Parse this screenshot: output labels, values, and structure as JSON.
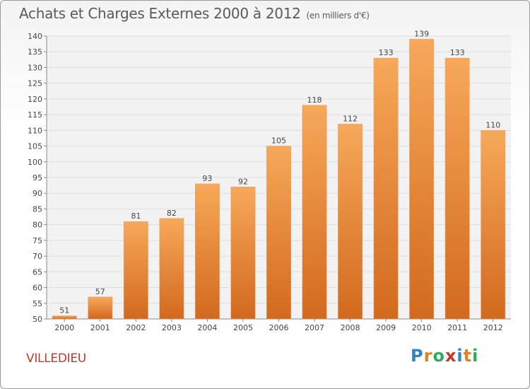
{
  "title": "Achats et Charges Externes 2000 à 2012",
  "subtitle": "(en milliers d'€)",
  "commune": "VILLEDIEU",
  "logo": {
    "letters": [
      {
        "ch": "P",
        "color": "#2e86c1"
      },
      {
        "ch": "r",
        "color": "#e67e22"
      },
      {
        "ch": "o",
        "color": "#27ae60"
      },
      {
        "ch": "x",
        "color": "#c0392b"
      },
      {
        "ch": "i",
        "color": "#2e86c1"
      },
      {
        "ch": "t",
        "color": "#e67e22"
      },
      {
        "ch": "i",
        "color": "#27ae60"
      }
    ]
  },
  "chart_data": {
    "type": "bar",
    "categories": [
      "2000",
      "2001",
      "2002",
      "2003",
      "2004",
      "2005",
      "2006",
      "2007",
      "2008",
      "2009",
      "2010",
      "2011",
      "2012"
    ],
    "values": [
      51,
      57,
      81,
      82,
      93,
      92,
      105,
      118,
      112,
      133,
      139,
      133,
      110
    ],
    "ylim": [
      50,
      140
    ],
    "ytick_step": 5,
    "grid": true,
    "colors": {
      "bar_top": "#f7a85a",
      "bar_bottom": "#d2691e",
      "grid": "#dddddd",
      "plot_bg": "#f2f2f2"
    }
  }
}
